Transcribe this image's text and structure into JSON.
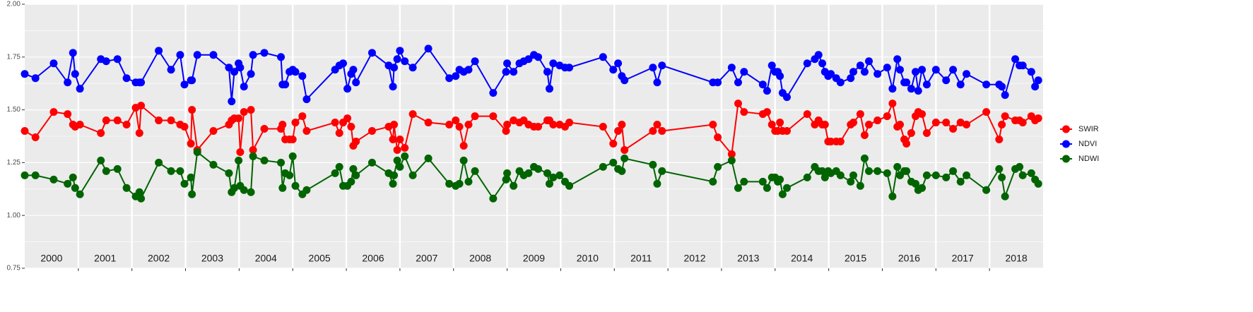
{
  "chart_data": {
    "type": "line",
    "x": [
      2000.0,
      2000.2,
      2000.54,
      2000.8,
      2000.9,
      2000.94,
      2001.03,
      2001.42,
      2001.52,
      2001.73,
      2001.9,
      2002.07,
      2002.14,
      2002.17,
      2002.5,
      2002.73,
      2002.9,
      2002.98,
      2003.1,
      2003.12,
      2003.22,
      2003.52,
      2003.81,
      2003.86,
      2003.91,
      2003.99,
      2004.02,
      2004.09,
      2004.22,
      2004.26,
      2004.47,
      2004.78,
      2004.81,
      2004.86,
      2004.94,
      2005.0,
      2005.05,
      2005.18,
      2005.26,
      2005.79,
      2005.87,
      2005.94,
      2006.02,
      2006.09,
      2006.13,
      2006.18,
      2006.48,
      2006.79,
      2006.87,
      2006.89,
      2006.95,
      2007.0,
      2007.09,
      2007.24,
      2007.53,
      2007.92,
      2008.04,
      2008.11,
      2008.19,
      2008.28,
      2008.4,
      2008.74,
      2008.98,
      2009.0,
      2009.12,
      2009.23,
      2009.31,
      2009.4,
      2009.5,
      2009.58,
      2009.75,
      2009.79,
      2009.86,
      2009.98,
      2010.08,
      2010.16,
      2010.79,
      2010.98,
      2011.07,
      2011.14,
      2011.19,
      2011.72,
      2011.8,
      2011.89,
      2012.84,
      2012.93,
      2013.19,
      2013.31,
      2013.42,
      2013.77,
      2013.85,
      2013.94,
      2014.0,
      2014.05,
      2014.09,
      2014.14,
      2014.22,
      2014.6,
      2014.74,
      2014.81,
      2014.88,
      2014.93,
      2014.99,
      2015.04,
      2015.14,
      2015.22,
      2015.41,
      2015.46,
      2015.59,
      2015.67,
      2015.75,
      2015.91,
      2016.09,
      2016.19,
      2016.28,
      2016.33,
      2016.41,
      2016.45,
      2016.54,
      2016.62,
      2016.67,
      2016.74,
      2016.83,
      2017.0,
      2017.19,
      2017.32,
      2017.46,
      2017.57,
      2017.94,
      2018.18,
      2018.23,
      2018.29,
      2018.48,
      2018.56,
      2018.62,
      2018.78,
      2018.85,
      2018.91
    ],
    "series": [
      {
        "name": "SWIR",
        "color": "#ff0000",
        "values": [
          1.4,
          1.37,
          1.49,
          1.48,
          1.43,
          1.42,
          1.43,
          1.39,
          1.45,
          1.45,
          1.43,
          1.51,
          1.39,
          1.52,
          1.45,
          1.45,
          1.43,
          1.42,
          1.34,
          1.5,
          1.31,
          1.4,
          1.43,
          1.45,
          1.46,
          1.46,
          1.3,
          1.49,
          1.5,
          1.31,
          1.41,
          1.41,
          1.43,
          1.36,
          1.36,
          1.36,
          1.44,
          1.47,
          1.4,
          1.44,
          1.39,
          1.44,
          1.46,
          1.42,
          1.33,
          1.35,
          1.4,
          1.42,
          1.36,
          1.43,
          1.31,
          1.36,
          1.32,
          1.48,
          1.44,
          1.43,
          1.45,
          1.42,
          1.33,
          1.43,
          1.47,
          1.47,
          1.4,
          1.43,
          1.45,
          1.44,
          1.45,
          1.43,
          1.42,
          1.42,
          1.45,
          1.45,
          1.43,
          1.43,
          1.42,
          1.44,
          1.42,
          1.34,
          1.4,
          1.43,
          1.31,
          1.4,
          1.43,
          1.4,
          1.43,
          1.37,
          1.29,
          1.53,
          1.49,
          1.48,
          1.49,
          1.43,
          1.4,
          1.4,
          1.44,
          1.4,
          1.4,
          1.48,
          1.43,
          1.45,
          1.43,
          1.43,
          1.35,
          1.35,
          1.35,
          1.35,
          1.43,
          1.44,
          1.48,
          1.38,
          1.43,
          1.45,
          1.47,
          1.53,
          1.42,
          1.43,
          1.36,
          1.34,
          1.39,
          1.47,
          1.49,
          1.48,
          1.39,
          1.44,
          1.44,
          1.41,
          1.44,
          1.43,
          1.49,
          1.36,
          1.43,
          1.47,
          1.45,
          1.45,
          1.44,
          1.47,
          1.45,
          1.46
        ]
      },
      {
        "name": "NDVI",
        "color": "#0000ff",
        "values": [
          1.67,
          1.65,
          1.72,
          1.63,
          1.77,
          1.67,
          1.6,
          1.74,
          1.73,
          1.74,
          1.65,
          1.63,
          1.63,
          1.63,
          1.78,
          1.69,
          1.76,
          1.62,
          1.64,
          1.64,
          1.76,
          1.76,
          1.7,
          1.54,
          1.68,
          1.72,
          1.7,
          1.61,
          1.67,
          1.76,
          1.77,
          1.75,
          1.62,
          1.62,
          1.68,
          1.69,
          1.68,
          1.66,
          1.55,
          1.69,
          1.71,
          1.72,
          1.6,
          1.67,
          1.69,
          1.63,
          1.77,
          1.71,
          1.61,
          1.7,
          1.74,
          1.78,
          1.73,
          1.7,
          1.79,
          1.65,
          1.66,
          1.69,
          1.68,
          1.69,
          1.73,
          1.58,
          1.68,
          1.72,
          1.68,
          1.72,
          1.73,
          1.74,
          1.76,
          1.75,
          1.68,
          1.6,
          1.72,
          1.71,
          1.7,
          1.7,
          1.75,
          1.69,
          1.72,
          1.66,
          1.64,
          1.7,
          1.63,
          1.71,
          1.63,
          1.63,
          1.7,
          1.63,
          1.68,
          1.62,
          1.59,
          1.71,
          1.68,
          1.68,
          1.66,
          1.58,
          1.56,
          1.72,
          1.74,
          1.76,
          1.72,
          1.68,
          1.66,
          1.67,
          1.65,
          1.63,
          1.65,
          1.68,
          1.71,
          1.68,
          1.73,
          1.67,
          1.7,
          1.6,
          1.74,
          1.69,
          1.63,
          1.63,
          1.6,
          1.68,
          1.59,
          1.69,
          1.62,
          1.69,
          1.64,
          1.69,
          1.62,
          1.67,
          1.62,
          1.62,
          1.61,
          1.57,
          1.74,
          1.71,
          1.71,
          1.68,
          1.61,
          1.64
        ]
      },
      {
        "name": "NDWI",
        "color": "#006400",
        "values": [
          1.19,
          1.19,
          1.17,
          1.15,
          1.18,
          1.13,
          1.1,
          1.26,
          1.21,
          1.22,
          1.13,
          1.09,
          1.11,
          1.08,
          1.25,
          1.21,
          1.21,
          1.15,
          1.18,
          1.1,
          1.3,
          1.24,
          1.2,
          1.11,
          1.13,
          1.26,
          1.14,
          1.12,
          1.11,
          1.28,
          1.26,
          1.25,
          1.13,
          1.2,
          1.19,
          1.28,
          1.14,
          1.1,
          1.12,
          1.2,
          1.23,
          1.14,
          1.14,
          1.16,
          1.22,
          1.19,
          1.25,
          1.2,
          1.15,
          1.19,
          1.26,
          1.23,
          1.28,
          1.19,
          1.27,
          1.15,
          1.14,
          1.15,
          1.26,
          1.16,
          1.21,
          1.08,
          1.17,
          1.2,
          1.14,
          1.21,
          1.19,
          1.2,
          1.23,
          1.22,
          1.2,
          1.15,
          1.18,
          1.19,
          1.16,
          1.14,
          1.23,
          1.25,
          1.22,
          1.21,
          1.27,
          1.24,
          1.15,
          1.21,
          1.16,
          1.23,
          1.26,
          1.13,
          1.16,
          1.16,
          1.13,
          1.18,
          1.18,
          1.16,
          1.17,
          1.1,
          1.13,
          1.18,
          1.23,
          1.21,
          1.21,
          1.18,
          1.21,
          1.2,
          1.21,
          1.19,
          1.16,
          1.19,
          1.14,
          1.27,
          1.21,
          1.21,
          1.2,
          1.09,
          1.23,
          1.19,
          1.21,
          1.21,
          1.16,
          1.15,
          1.12,
          1.13,
          1.19,
          1.19,
          1.18,
          1.21,
          1.16,
          1.19,
          1.12,
          1.22,
          1.18,
          1.09,
          1.22,
          1.23,
          1.19,
          1.2,
          1.17,
          1.15
        ]
      }
    ],
    "xlim": [
      2000,
      2019
    ],
    "xticks": [
      2001,
      2002,
      2003,
      2004,
      2005,
      2006,
      2007,
      2008,
      2009,
      2010,
      2011,
      2012,
      2013,
      2014,
      2015,
      2016,
      2017,
      2018
    ],
    "panel_labels": [
      "2000",
      "2001",
      "2002",
      "2003",
      "2004",
      "2005",
      "2006",
      "2007",
      "2008",
      "2009",
      "2010",
      "2011",
      "2012",
      "2013",
      "2014",
      "2015",
      "2016",
      "2017",
      "2018"
    ],
    "ylim": [
      0.75,
      2.0
    ],
    "yticks": [
      {
        "value": 0.75,
        "label": "0.75"
      },
      {
        "value": 1.0,
        "label": "1.00"
      },
      {
        "value": 1.25,
        "label": "1.25"
      },
      {
        "value": 1.5,
        "label": "1.50"
      },
      {
        "value": 1.75,
        "label": "1.75"
      },
      {
        "value": 2.0,
        "label": "2.00"
      }
    ],
    "yminor": [
      0.875,
      1.125,
      1.375,
      1.625,
      1.875
    ],
    "grid": true,
    "legend": "right"
  }
}
